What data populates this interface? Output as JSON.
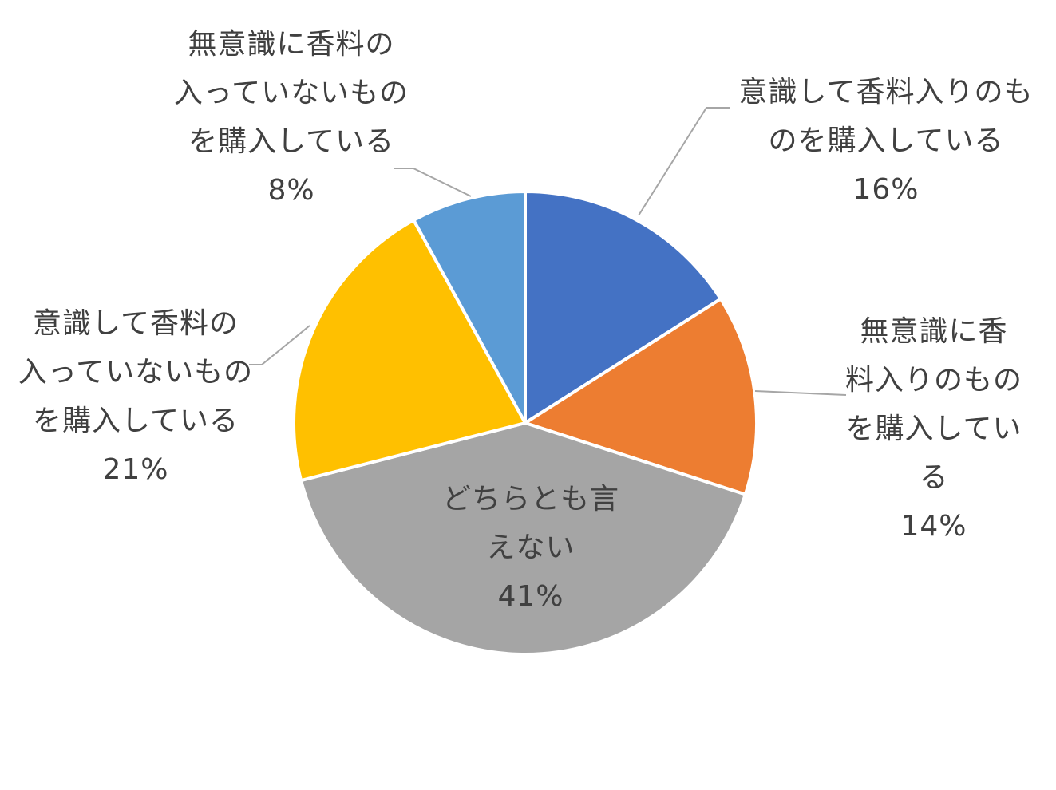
{
  "chart_data": {
    "type": "pie",
    "title": "",
    "start_angle_deg": 0,
    "direction": "clockwise",
    "slices": [
      {
        "label_lines": [
          "意識して香料入りのも",
          "のを購入している"
        ],
        "value": 16,
        "pct_text": "16%",
        "color": "#4472C4"
      },
      {
        "label_lines": [
          "無意識に香",
          "料入りのもの",
          "を購入してい",
          "る"
        ],
        "value": 14,
        "pct_text": "14%",
        "color": "#ED7D31"
      },
      {
        "label_lines": [
          "どちらとも言",
          "えない"
        ],
        "value": 41,
        "pct_text": "41%",
        "color": "#A5A5A5"
      },
      {
        "label_lines": [
          "意識して香料の",
          "入っていないもの",
          "を購入している"
        ],
        "value": 21,
        "pct_text": "21%",
        "color": "#FFC000"
      },
      {
        "label_lines": [
          "無意識に香料の",
          "入っていないもの",
          "を購入している"
        ],
        "value": 8,
        "pct_text": "8%",
        "color": "#5B9BD5"
      }
    ],
    "slice_border_color": "#FFFFFF",
    "leader_line_color": "#A6A6A6"
  }
}
